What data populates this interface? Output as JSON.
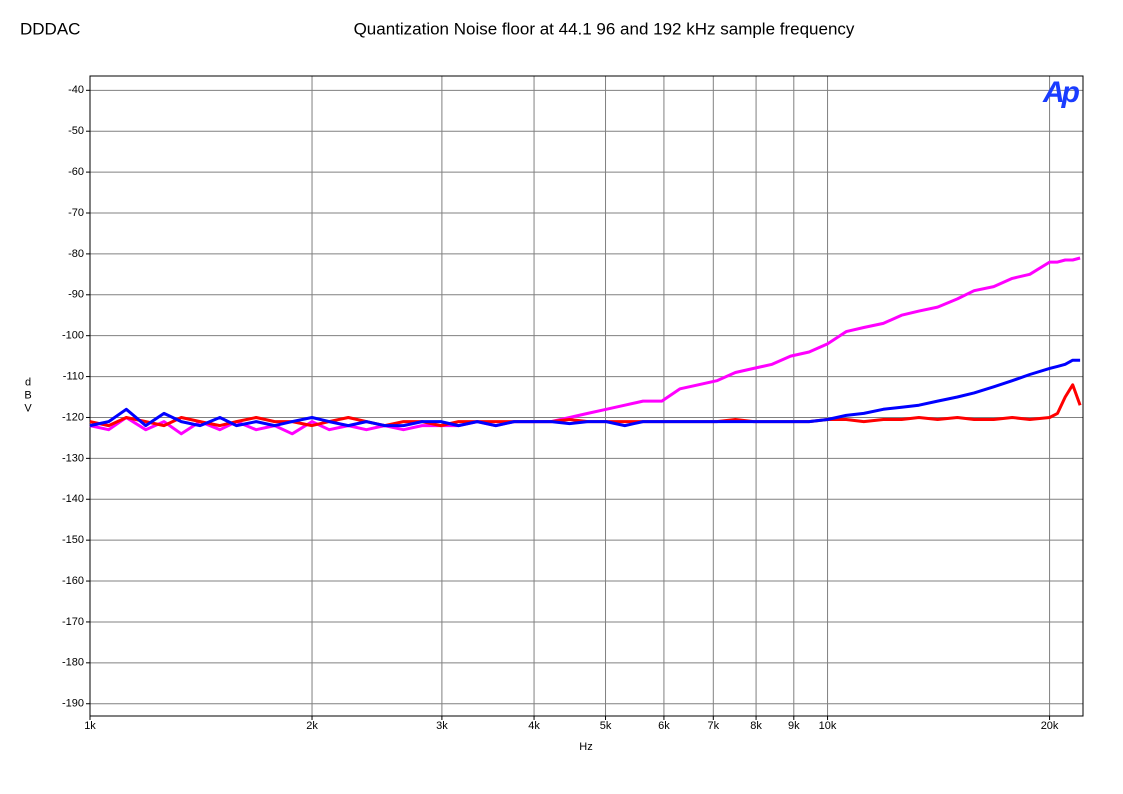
{
  "chart_data": {
    "type": "line",
    "title": "Quantization Noise floor at 44.1  96 and 192 kHz sample frequency",
    "subtitle": "DDDAC",
    "logo": "Ap",
    "x_label": "Hz",
    "y_label": "dBV",
    "log_x": true,
    "grid": true,
    "xlim": [
      1000,
      22200
    ],
    "ylim": [
      -193,
      -36.5
    ],
    "xticks": [
      {
        "value": 1000,
        "label": "1k"
      },
      {
        "value": 2000,
        "label": "2k"
      },
      {
        "value": 3000,
        "label": "3k"
      },
      {
        "value": 4000,
        "label": "4k"
      },
      {
        "value": 5000,
        "label": "5k"
      },
      {
        "value": 6000,
        "label": "6k"
      },
      {
        "value": 7000,
        "label": "7k"
      },
      {
        "value": 8000,
        "label": "8k"
      },
      {
        "value": 9000,
        "label": "9k"
      },
      {
        "value": 10000,
        "label": "10k"
      },
      {
        "value": 20000,
        "label": "20k"
      }
    ],
    "yticks": [
      -40,
      -50,
      -60,
      -70,
      -80,
      -90,
      -100,
      -110,
      -120,
      -130,
      -140,
      -150,
      -160,
      -170,
      -180,
      -190
    ],
    "x": [
      1000,
      1060,
      1120,
      1190,
      1260,
      1330,
      1410,
      1500,
      1580,
      1680,
      1780,
      1880,
      2000,
      2110,
      2240,
      2370,
      2510,
      2660,
      2820,
      2990,
      3160,
      3350,
      3550,
      3760,
      3980,
      4220,
      4470,
      4730,
      5010,
      5310,
      5620,
      5960,
      6310,
      6680,
      7080,
      7500,
      7940,
      8410,
      8910,
      9440,
      10000,
      10600,
      11200,
      11900,
      12600,
      13300,
      14100,
      15000,
      15800,
      16800,
      17800,
      18800,
      20000,
      20500,
      21000,
      21500,
      22000
    ],
    "series": [
      {
        "color": "#ff00ff",
        "values": [
          -122,
          -123,
          -120,
          -123,
          -121,
          -124,
          -121,
          -123,
          -121,
          -123,
          -122,
          -124,
          -121,
          -123,
          -122,
          -123,
          -122,
          -123,
          -122,
          -122,
          -122,
          -121,
          -122,
          -121,
          -121,
          -121,
          -120,
          -119,
          -118,
          -117,
          -116,
          -116,
          -113,
          -112,
          -111,
          -109,
          -108,
          -107,
          -105,
          -104,
          -102,
          -99,
          -98,
          -97,
          -95,
          -94,
          -93,
          -91,
          -89,
          -88,
          -86,
          -85,
          -82,
          -82,
          -81.5,
          -81.5,
          -81
        ]
      },
      {
        "color": "#ff0000",
        "values": [
          -121,
          -122,
          -120,
          -121,
          -122,
          -120,
          -121,
          -122,
          -121,
          -120,
          -121,
          -121,
          -122,
          -121,
          -120,
          -121,
          -122,
          -121,
          -121,
          -122,
          -121,
          -121,
          -121,
          -121,
          -121,
          -121,
          -120.5,
          -121,
          -121,
          -121,
          -121,
          -121,
          -121,
          -121,
          -121,
          -120.5,
          -121,
          -121,
          -121,
          -121,
          -120.5,
          -120.5,
          -121,
          -120.5,
          -120.5,
          -120,
          -120.5,
          -120,
          -120.5,
          -120.5,
          -120,
          -120.5,
          -120,
          -119,
          -115,
          -112,
          -117
        ]
      },
      {
        "color": "#0000ff",
        "values": [
          -122,
          -121,
          -118,
          -122,
          -119,
          -121,
          -122,
          -120,
          -122,
          -121,
          -122,
          -121,
          -120,
          -121,
          -122,
          -121,
          -122,
          -122,
          -121,
          -121,
          -122,
          -121,
          -122,
          -121,
          -121,
          -121,
          -121.5,
          -121,
          -121,
          -122,
          -121,
          -121,
          -121,
          -121,
          -121,
          -121,
          -121,
          -121,
          -121,
          -121,
          -120.5,
          -119.5,
          -119,
          -118,
          -117.5,
          -117,
          -116,
          -115,
          -114,
          -112.5,
          -111,
          -109.5,
          -108,
          -107.5,
          -107,
          -106,
          -106
        ]
      }
    ]
  }
}
